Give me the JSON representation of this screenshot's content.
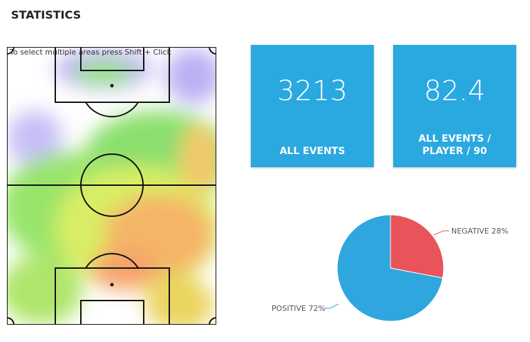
{
  "header": {
    "title": "STATISTICS"
  },
  "heatmap": {
    "hint": "To select multiple areas press Shift + Click"
  },
  "tiles": [
    {
      "value": "3213",
      "label": "ALL EVENTS"
    },
    {
      "value": "82.4",
      "label": "ALL EVENTS / PLAYER / 90"
    }
  ],
  "chart_data": {
    "type": "pie",
    "values": [
      28,
      72
    ],
    "value_labels": [
      "NEGATIVE 28%",
      "POSITIVE 72%"
    ],
    "colors": [
      "#e9535a",
      "#2fa6de"
    ]
  }
}
